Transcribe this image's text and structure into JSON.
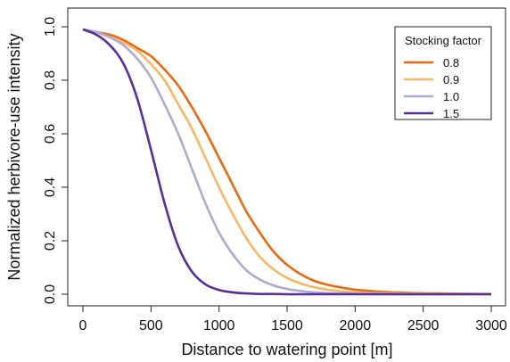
{
  "chart_data": {
    "type": "line",
    "title": "",
    "xlabel": "Distance to watering point [m]",
    "ylabel": "Normalized herbivore-use intensity",
    "xlim": [
      0,
      3000
    ],
    "ylim": [
      0,
      1
    ],
    "xticks": [
      0,
      500,
      1000,
      1500,
      2000,
      2500,
      3000
    ],
    "xtick_labels": [
      "0",
      "500",
      "1000",
      "1500",
      "2000",
      "2500",
      "3000"
    ],
    "yticks": [
      0,
      0.2,
      0.4,
      0.6,
      0.8,
      1.0
    ],
    "ytick_labels": [
      "0.0",
      "0.2",
      "0.4",
      "0.6",
      "0.8",
      "1.0"
    ],
    "grid": false,
    "legend": {
      "title": "Stocking factor",
      "position": "top-right"
    },
    "x": [
      0,
      100,
      200,
      300,
      400,
      500,
      600,
      700,
      800,
      900,
      1000,
      1100,
      1200,
      1300,
      1400,
      1500,
      1600,
      1700,
      1800,
      1900,
      2000,
      2200,
      2400,
      2600,
      2800,
      3000
    ],
    "series": [
      {
        "name": "0.8",
        "color": "#e8690f",
        "values": [
          0.99,
          0.98,
          0.97,
          0.95,
          0.92,
          0.89,
          0.84,
          0.78,
          0.7,
          0.61,
          0.51,
          0.41,
          0.31,
          0.23,
          0.16,
          0.11,
          0.075,
          0.05,
          0.035,
          0.025,
          0.017,
          0.009,
          0.005,
          0.003,
          0.002,
          0.001
        ]
      },
      {
        "name": "0.9",
        "color": "#f5b865",
        "values": [
          0.99,
          0.98,
          0.96,
          0.94,
          0.91,
          0.86,
          0.8,
          0.71,
          0.62,
          0.51,
          0.4,
          0.3,
          0.21,
          0.14,
          0.093,
          0.061,
          0.04,
          0.026,
          0.017,
          0.011,
          0.007,
          0.004,
          0.002,
          0.001,
          0.001,
          0.0
        ]
      },
      {
        "name": "1.0",
        "color": "#b3a7d4",
        "values": [
          0.99,
          0.98,
          0.96,
          0.93,
          0.88,
          0.81,
          0.71,
          0.6,
          0.47,
          0.34,
          0.23,
          0.15,
          0.09,
          0.055,
          0.033,
          0.02,
          0.012,
          0.007,
          0.004,
          0.003,
          0.002,
          0.001,
          0.0,
          0.0,
          0.0,
          0.0
        ]
      },
      {
        "name": "1.5",
        "color": "#55309a",
        "values": [
          0.99,
          0.97,
          0.93,
          0.86,
          0.73,
          0.54,
          0.34,
          0.18,
          0.085,
          0.037,
          0.016,
          0.007,
          0.003,
          0.001,
          0.001,
          0.0,
          0.0,
          0.0,
          0.0,
          0.0,
          0.0,
          0.0,
          0.0,
          0.0,
          0.0,
          0.0
        ]
      }
    ]
  }
}
